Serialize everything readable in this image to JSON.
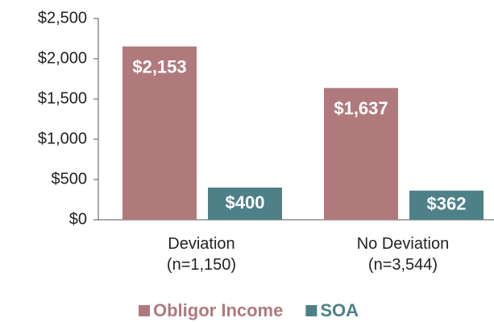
{
  "chart_data": {
    "type": "bar",
    "categories": [
      "Deviation\n(n=1,150)",
      "No Deviation\n(n=3,544)"
    ],
    "series": [
      {
        "name": "Obligor Income",
        "color": "#b07a7d",
        "values": [
          2153,
          1637
        ],
        "value_labels": [
          "$2,153",
          "$1,637"
        ]
      },
      {
        "name": "SOA",
        "color": "#4e8088",
        "values": [
          400,
          362
        ],
        "value_labels": [
          "$400",
          "$362"
        ]
      }
    ],
    "ylim": [
      0,
      2500
    ],
    "yticks": [
      {
        "value": 0,
        "label": "$0"
      },
      {
        "value": 500,
        "label": "$500"
      },
      {
        "value": 1000,
        "label": "$1,000"
      },
      {
        "value": 1500,
        "label": "$1,500"
      },
      {
        "value": 2000,
        "label": "$2,000"
      },
      {
        "value": 2500,
        "label": "$2,500"
      }
    ],
    "legend": "bottom"
  }
}
